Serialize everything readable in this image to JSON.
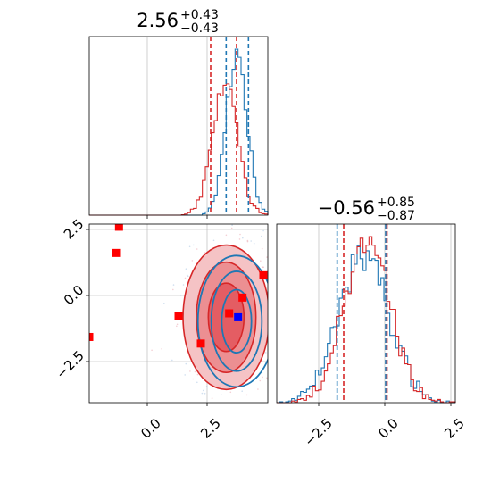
{
  "colors": {
    "blue": "#1f77b4",
    "red": "#d62728",
    "marker_red": "#ff0000",
    "marker_blue": "#0000ff"
  },
  "chart_data": {
    "type": "corner",
    "grid": true,
    "panels": [
      {
        "id": "hist_param1",
        "type": "histogram",
        "title": {
          "value": "2.56",
          "plus": "+0.43",
          "minus": "−0.43"
        },
        "xlim": [
          -2.0,
          4.0
        ],
        "x_ticks": [
          0.0,
          2.5
        ],
        "quantile_lines": [
          {
            "color": "red",
            "x": 2.08
          },
          {
            "color": "blue",
            "x": 2.6
          },
          {
            "color": "red",
            "x": 2.95
          },
          {
            "color": "blue",
            "x": 3.35
          }
        ],
        "series": [
          {
            "name": "",
            "color": "blue",
            "mu": 2.95,
            "sigma": 0.35,
            "seed": 11
          },
          {
            "name": "",
            "color": "red",
            "mu": 2.55,
            "sigma": 0.42,
            "seed": 23
          }
        ]
      },
      {
        "id": "scatter_param1_param2",
        "type": "2d-contour",
        "xlim": [
          -2.0,
          4.0
        ],
        "ylim": [
          -4.0,
          2.8
        ],
        "x_tick_labels": [
          "0.0",
          "2.5"
        ],
        "x_ticks": [
          0.0,
          2.5
        ],
        "y_tick_labels": [
          "−2.5",
          "0.0",
          "2.5"
        ],
        "y_ticks": [
          -2.5,
          0.0,
          2.5
        ],
        "contours_red": {
          "cx": 2.6,
          "cy": -0.75,
          "rx": [
            0.6,
            1.0,
            1.45
          ],
          "ry": [
            1.3,
            2.1,
            2.75
          ]
        },
        "contours_blue": {
          "cx": 2.95,
          "cy": -0.9,
          "rx": [
            0.5,
            0.85,
            1.3
          ],
          "ry": [
            1.2,
            1.9,
            2.5
          ]
        },
        "red_markers": [
          [
            -1.0,
            2.7
          ],
          [
            -1.1,
            1.7
          ],
          [
            -2.0,
            -1.5
          ],
          [
            1.0,
            -0.7
          ],
          [
            1.75,
            -1.75
          ],
          [
            2.7,
            -0.6
          ],
          [
            3.15,
            0.0
          ],
          [
            3.85,
            0.85
          ]
        ],
        "blue_markers": [
          [
            3.0,
            -0.75
          ]
        ]
      },
      {
        "id": "hist_param2",
        "type": "histogram",
        "title": {
          "value": "−0.56",
          "plus": "+0.85",
          "minus": "−0.87"
        },
        "xlim": [
          -4.0,
          2.8
        ],
        "x_tick_labels": [
          "−2.5",
          "0.0",
          "2.5"
        ],
        "x_ticks": [
          -2.5,
          0.0,
          2.5
        ],
        "quantile_lines": [
          {
            "color": "blue",
            "x": -1.7
          },
          {
            "color": "red",
            "x": -1.45
          },
          {
            "color": "blue",
            "x": 0.15
          },
          {
            "color": "red",
            "x": 0.2
          }
        ],
        "series": [
          {
            "name": "",
            "color": "blue",
            "mu": -0.7,
            "sigma": 0.95,
            "seed": 37
          },
          {
            "name": "",
            "color": "red",
            "mu": -0.56,
            "sigma": 0.87,
            "seed": 51
          }
        ]
      }
    ]
  }
}
